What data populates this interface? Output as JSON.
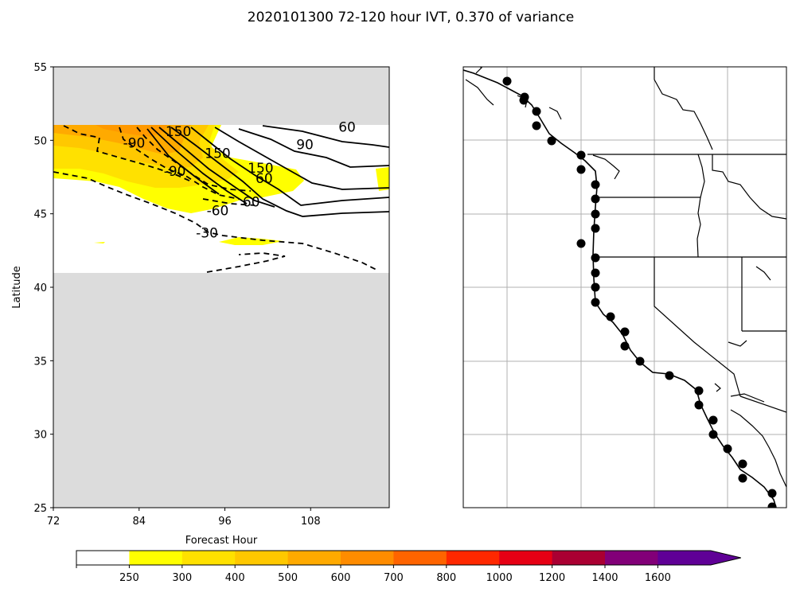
{
  "title": "2020101300 72-120 hour IVT, 0.370 of variance",
  "chart_data": [
    {
      "type": "heatmap",
      "xlabel": "Forecast Hour",
      "ylabel": "Latitude",
      "xlim": [
        72,
        119
      ],
      "ylim": [
        25,
        55
      ],
      "x_ticks": [
        "72",
        "84",
        "96",
        "108"
      ],
      "y_ticks": [
        "25",
        "30",
        "35",
        "40",
        "45",
        "50",
        "55"
      ],
      "data_band_latitudes": [
        41,
        51
      ],
      "masked_color": "#dcdcdc",
      "contour_labels": [
        {
          "text": "60",
          "x": 113.1,
          "y": 50.7
        },
        {
          "text": "90",
          "x": 107.2,
          "y": 49.5
        },
        {
          "text": "-90",
          "x": 83.3,
          "y": 49.6
        },
        {
          "text": "150",
          "x": 89.5,
          "y": 50.4
        },
        {
          "text": "150",
          "x": 95.0,
          "y": 48.9
        },
        {
          "text": "150",
          "x": 101.0,
          "y": 47.9
        },
        {
          "text": "-90",
          "x": 89.0,
          "y": 47.7
        },
        {
          "text": "-60",
          "x": 95.0,
          "y": 45.0
        },
        {
          "text": "-30",
          "x": 93.5,
          "y": 43.5
        },
        {
          "text": "60",
          "x": 101.5,
          "y": 47.2
        },
        {
          "text": "60",
          "x": 99.7,
          "y": 45.6
        }
      ],
      "filled_regions": [
        {
          "level": "250-300",
          "color": "#ffff00"
        },
        {
          "level": "300-400",
          "color": "#ffe100"
        },
        {
          "level": "400-500",
          "color": "#ffc800"
        },
        {
          "level": "500-600",
          "color": "#ffaa00"
        }
      ]
    },
    {
      "type": "map",
      "region": "US West Coast",
      "markers": "coastal points",
      "marker_count": 31
    }
  ],
  "colorbar": {
    "tick_labels": [
      "250",
      "300",
      "400",
      "500",
      "600",
      "700",
      "800",
      "1000",
      "1200",
      "1400",
      "1600"
    ],
    "colors": [
      "#ffffff",
      "#ffff00",
      "#ffe100",
      "#ffc800",
      "#ffaa00",
      "#ff8c00",
      "#ff6400",
      "#ff2800",
      "#e60014",
      "#aa0032",
      "#820078",
      "#5f0096"
    ]
  }
}
